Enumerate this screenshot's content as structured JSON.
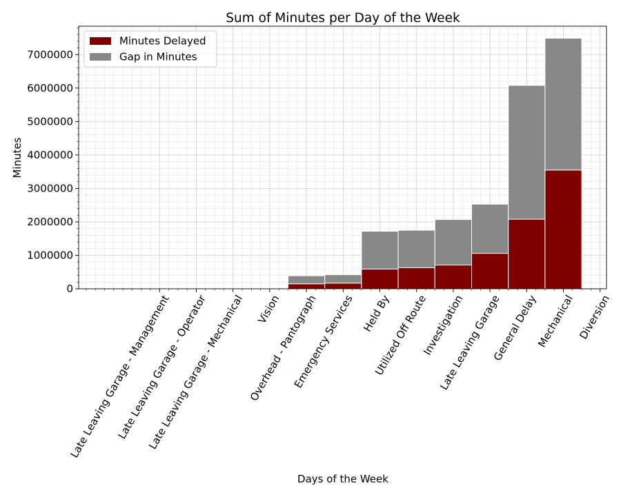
{
  "chart_data": {
    "type": "bar",
    "stacked": true,
    "title": "Sum of Minutes per Day of the Week",
    "xlabel": "Days of the Week",
    "ylabel": "Minutes",
    "ylim": [
      0,
      7850000
    ],
    "yticks": [
      0,
      1000000,
      2000000,
      3000000,
      4000000,
      5000000,
      6000000,
      7000000
    ],
    "ytick_labels": [
      "0",
      "1000000",
      "2000000",
      "3000000",
      "4000000",
      "5000000",
      "6000000",
      "7000000"
    ],
    "grid": true,
    "legend_position": "top-left",
    "categories": [
      "Late Leaving Garage - Management",
      "Late Leaving Garage - Operator",
      "Late Leaving Garage - Mechanical",
      "Vision",
      "Overhead - Pantograph",
      "Emergency Services",
      "Held By",
      "Utilized Off Route",
      "Investigation",
      "Late Leaving Garage",
      "General Delay",
      "Mechanical",
      "Diversion"
    ],
    "series": [
      {
        "name": "Minutes Delayed",
        "color": "#800000",
        "values": [
          1000,
          1000,
          1000,
          2000,
          150000,
          170000,
          590000,
          630000,
          710000,
          1060000,
          2080000,
          3550000,
          0
        ]
      },
      {
        "name": "Gap in Minutes",
        "color": "#888888",
        "values": [
          2000,
          2000,
          3000,
          4000,
          240000,
          250000,
          1130000,
          1120000,
          1360000,
          1470000,
          4000000,
          3940000,
          0
        ]
      }
    ],
    "legend": [
      "Minutes Delayed",
      "Gap in Minutes"
    ]
  }
}
